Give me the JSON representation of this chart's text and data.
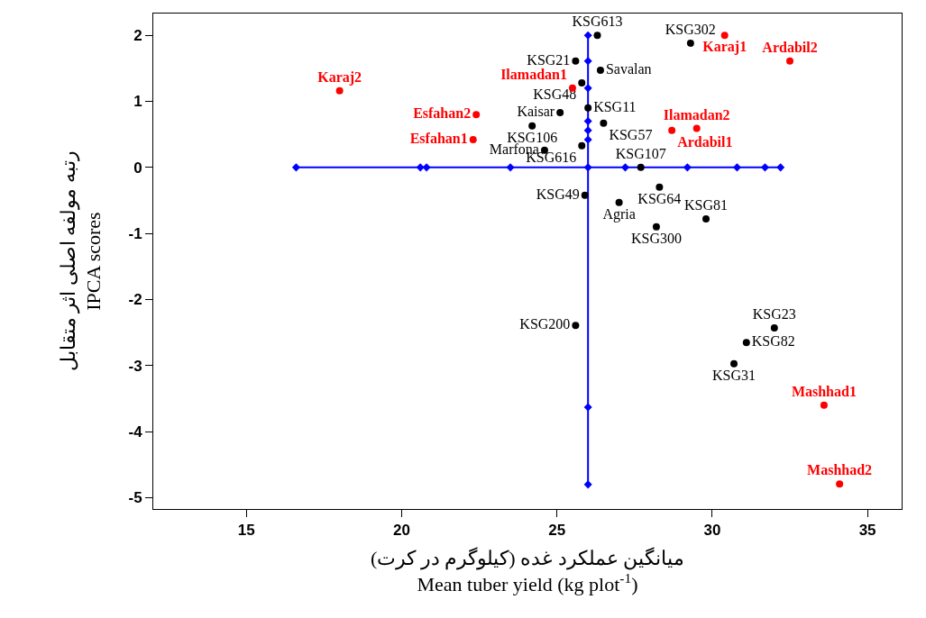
{
  "chart_data": {
    "type": "scatter",
    "xlabel": "میانگین عملکرد غده (کیلوگرم در کرت)\nMean tuber yield (kg plot$^{-1}$)",
    "ylabel": "رتبه مولفه اصلی اثر متقابل\nIPCA scores",
    "xlim": [
      12,
      36.1
    ],
    "ylim": [
      -5.17,
      2.33
    ],
    "xticks": [
      15,
      20,
      25,
      30,
      35
    ],
    "yticks": [
      -5,
      -4,
      -3,
      -2,
      -1,
      0,
      1,
      2
    ],
    "grid": false,
    "series": [
      {
        "type": "line",
        "color": "#0000ff",
        "marker": "diamond",
        "line_style": "solid",
        "x": [
          16.6,
          20.6,
          20.8,
          23.5,
          26.0,
          27.2,
          29.2,
          30.8,
          31.7,
          32.2
        ],
        "values": [
          0,
          0,
          0,
          0,
          0,
          0,
          0,
          0,
          0,
          0
        ]
      },
      {
        "type": "line",
        "color": "#0000ff",
        "marker": "diamond",
        "line_style": "solid",
        "x": [
          26.0,
          26.0,
          26.0,
          26.0,
          26.0,
          26.0,
          26.0,
          26.0
        ],
        "values": [
          2.0,
          1.61,
          1.2,
          0.7,
          0.56,
          0.42,
          -3.63,
          -4.8
        ]
      },
      {
        "color": "#000000",
        "marker": "circle",
        "x": [
          26.3,
          29.3,
          25.6,
          26.4,
          25.8,
          26.0,
          25.1,
          26.5,
          24.2,
          25.8,
          24.6,
          27.7,
          28.3,
          25.9,
          27.0,
          29.8,
          28.2,
          25.6,
          32.0,
          31.1,
          30.7
        ],
        "values": [
          2.0,
          1.88,
          1.61,
          1.47,
          1.28,
          0.9,
          0.83,
          0.67,
          0.63,
          0.33,
          0.26,
          0,
          -0.3,
          -0.42,
          -0.53,
          -0.78,
          -0.9,
          -2.39,
          -2.43,
          -2.65,
          -2.97
        ],
        "value_labels": [
          "KSG613",
          "KSG302",
          "KSG21",
          "Savalan",
          "KSG48",
          "KSG11",
          "Kaisar",
          "KSG57",
          "KSG106",
          "KSG616",
          "Marfona",
          "KSG107",
          "KSG64",
          "KSG49",
          "Agria",
          "KSG81",
          "KSG300",
          "KSG200",
          "KSG23",
          "KSG82",
          "KSG31"
        ]
      },
      {
        "color": "#ff0000",
        "marker": "circle",
        "x": [
          30.4,
          32.5,
          18.0,
          25.5,
          22.4,
          22.3,
          28.7,
          29.5,
          33.6,
          34.1
        ],
        "values": [
          2.0,
          1.61,
          1.16,
          1.2,
          0.8,
          0.42,
          0.56,
          0.59,
          -3.6,
          -4.79
        ],
        "value_labels": [
          "Karaj1",
          "Ardabil2",
          "Karaj2",
          "Ilamadan1",
          "Esfahan2",
          "Esfahan1",
          "Ardabil1",
          "Ilamadan2",
          "Mashhad1",
          "Mashhad2"
        ]
      }
    ]
  }
}
